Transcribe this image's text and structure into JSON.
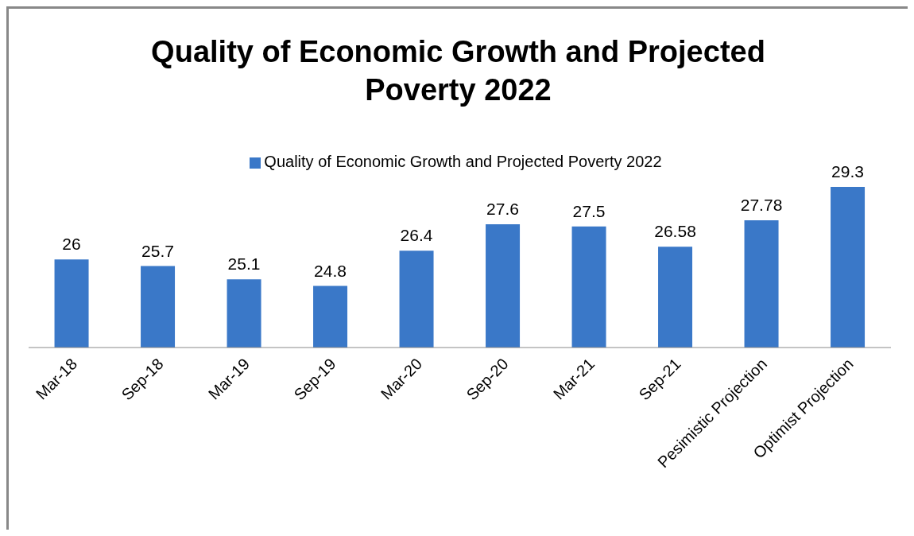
{
  "chart_data": {
    "type": "bar",
    "title": "Quality of Economic Growth and Projected Poverty 2022",
    "categories": [
      "Mar-18",
      "Sep-18",
      "Mar-19",
      "Sep-19",
      "Mar-20",
      "Sep-20",
      "Mar-21",
      "Sep-21",
      "Pesimistic Projection",
      "Optimist Projection"
    ],
    "series": [
      {
        "name": "Quality of Economic Growth and Projected Poverty 2022",
        "color": "#3a78c8",
        "values": [
          26,
          25.7,
          25.1,
          24.8,
          26.4,
          27.6,
          27.5,
          26.58,
          27.78,
          29.3
        ]
      }
    ],
    "ylim": [
      22,
      29.3
    ],
    "tick_labels": "x",
    "data_labels": true,
    "legend": "top",
    "grid": false
  }
}
